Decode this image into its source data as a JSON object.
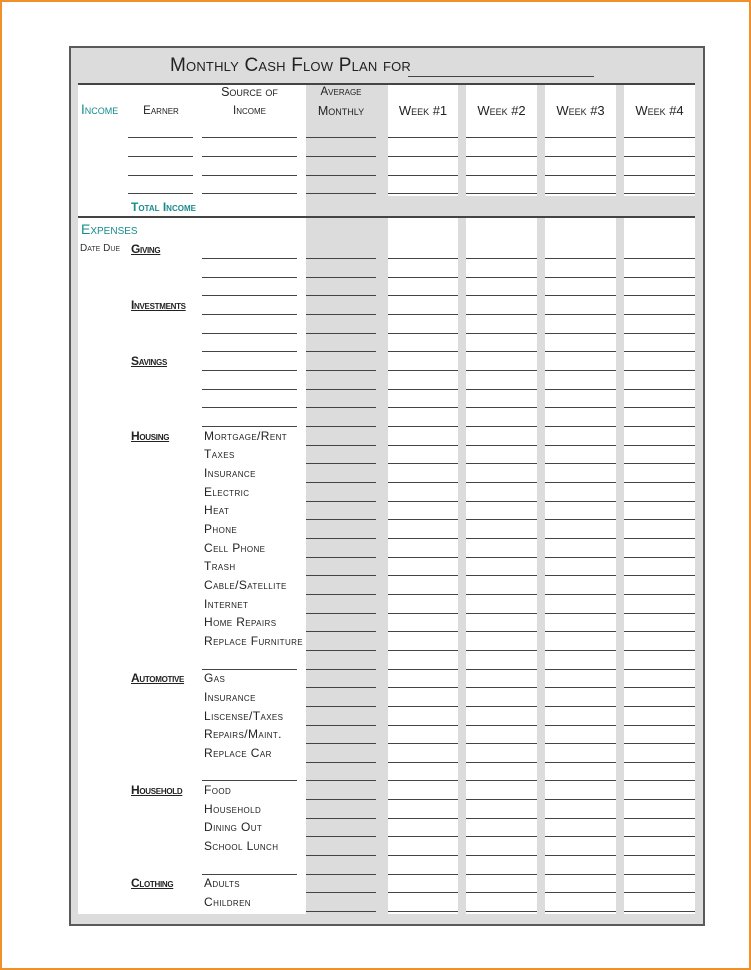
{
  "title": "Monthly Cash Flow Plan for",
  "header": {
    "income_label": "Income",
    "earner": "Earner",
    "source_line1": "Source of",
    "source_line2": "Income",
    "average_line1": "Average",
    "average_line2": "Monthly",
    "weeks": [
      "Week #1",
      "Week #2",
      "Week #3",
      "Week #4"
    ]
  },
  "income": {
    "total_label": "Total Income"
  },
  "expenses": {
    "title": "Expenses",
    "date_due": "Date Due",
    "categories": [
      {
        "name": "Giving",
        "items": [
          "",
          "",
          ""
        ]
      },
      {
        "name": "Investments",
        "items": [
          "",
          "",
          ""
        ]
      },
      {
        "name": "Savings",
        "items": [
          "",
          "",
          "",
          ""
        ]
      },
      {
        "name": "Housing",
        "items": [
          "Mortgage/Rent",
          "Taxes",
          "Insurance",
          "Electric",
          "Heat",
          "Phone",
          "Cell Phone",
          "Trash",
          "Cable/Satellite",
          "Internet",
          "Home Repairs",
          "Replace Furniture",
          ""
        ]
      },
      {
        "name": "Automotive",
        "items": [
          "Gas",
          "Insurance",
          "Liscense/Taxes",
          "Repairs/Maint.",
          "Replace Car",
          ""
        ]
      },
      {
        "name": "Household",
        "items": [
          "Food",
          "Household",
          "Dining Out",
          "School Lunch",
          ""
        ]
      },
      {
        "name": "Clothing",
        "items": [
          "Adults",
          "Children"
        ]
      }
    ]
  },
  "colors": {
    "accent": "#178c8c",
    "border": "#f0902a",
    "shade": "#dcdcdc"
  }
}
